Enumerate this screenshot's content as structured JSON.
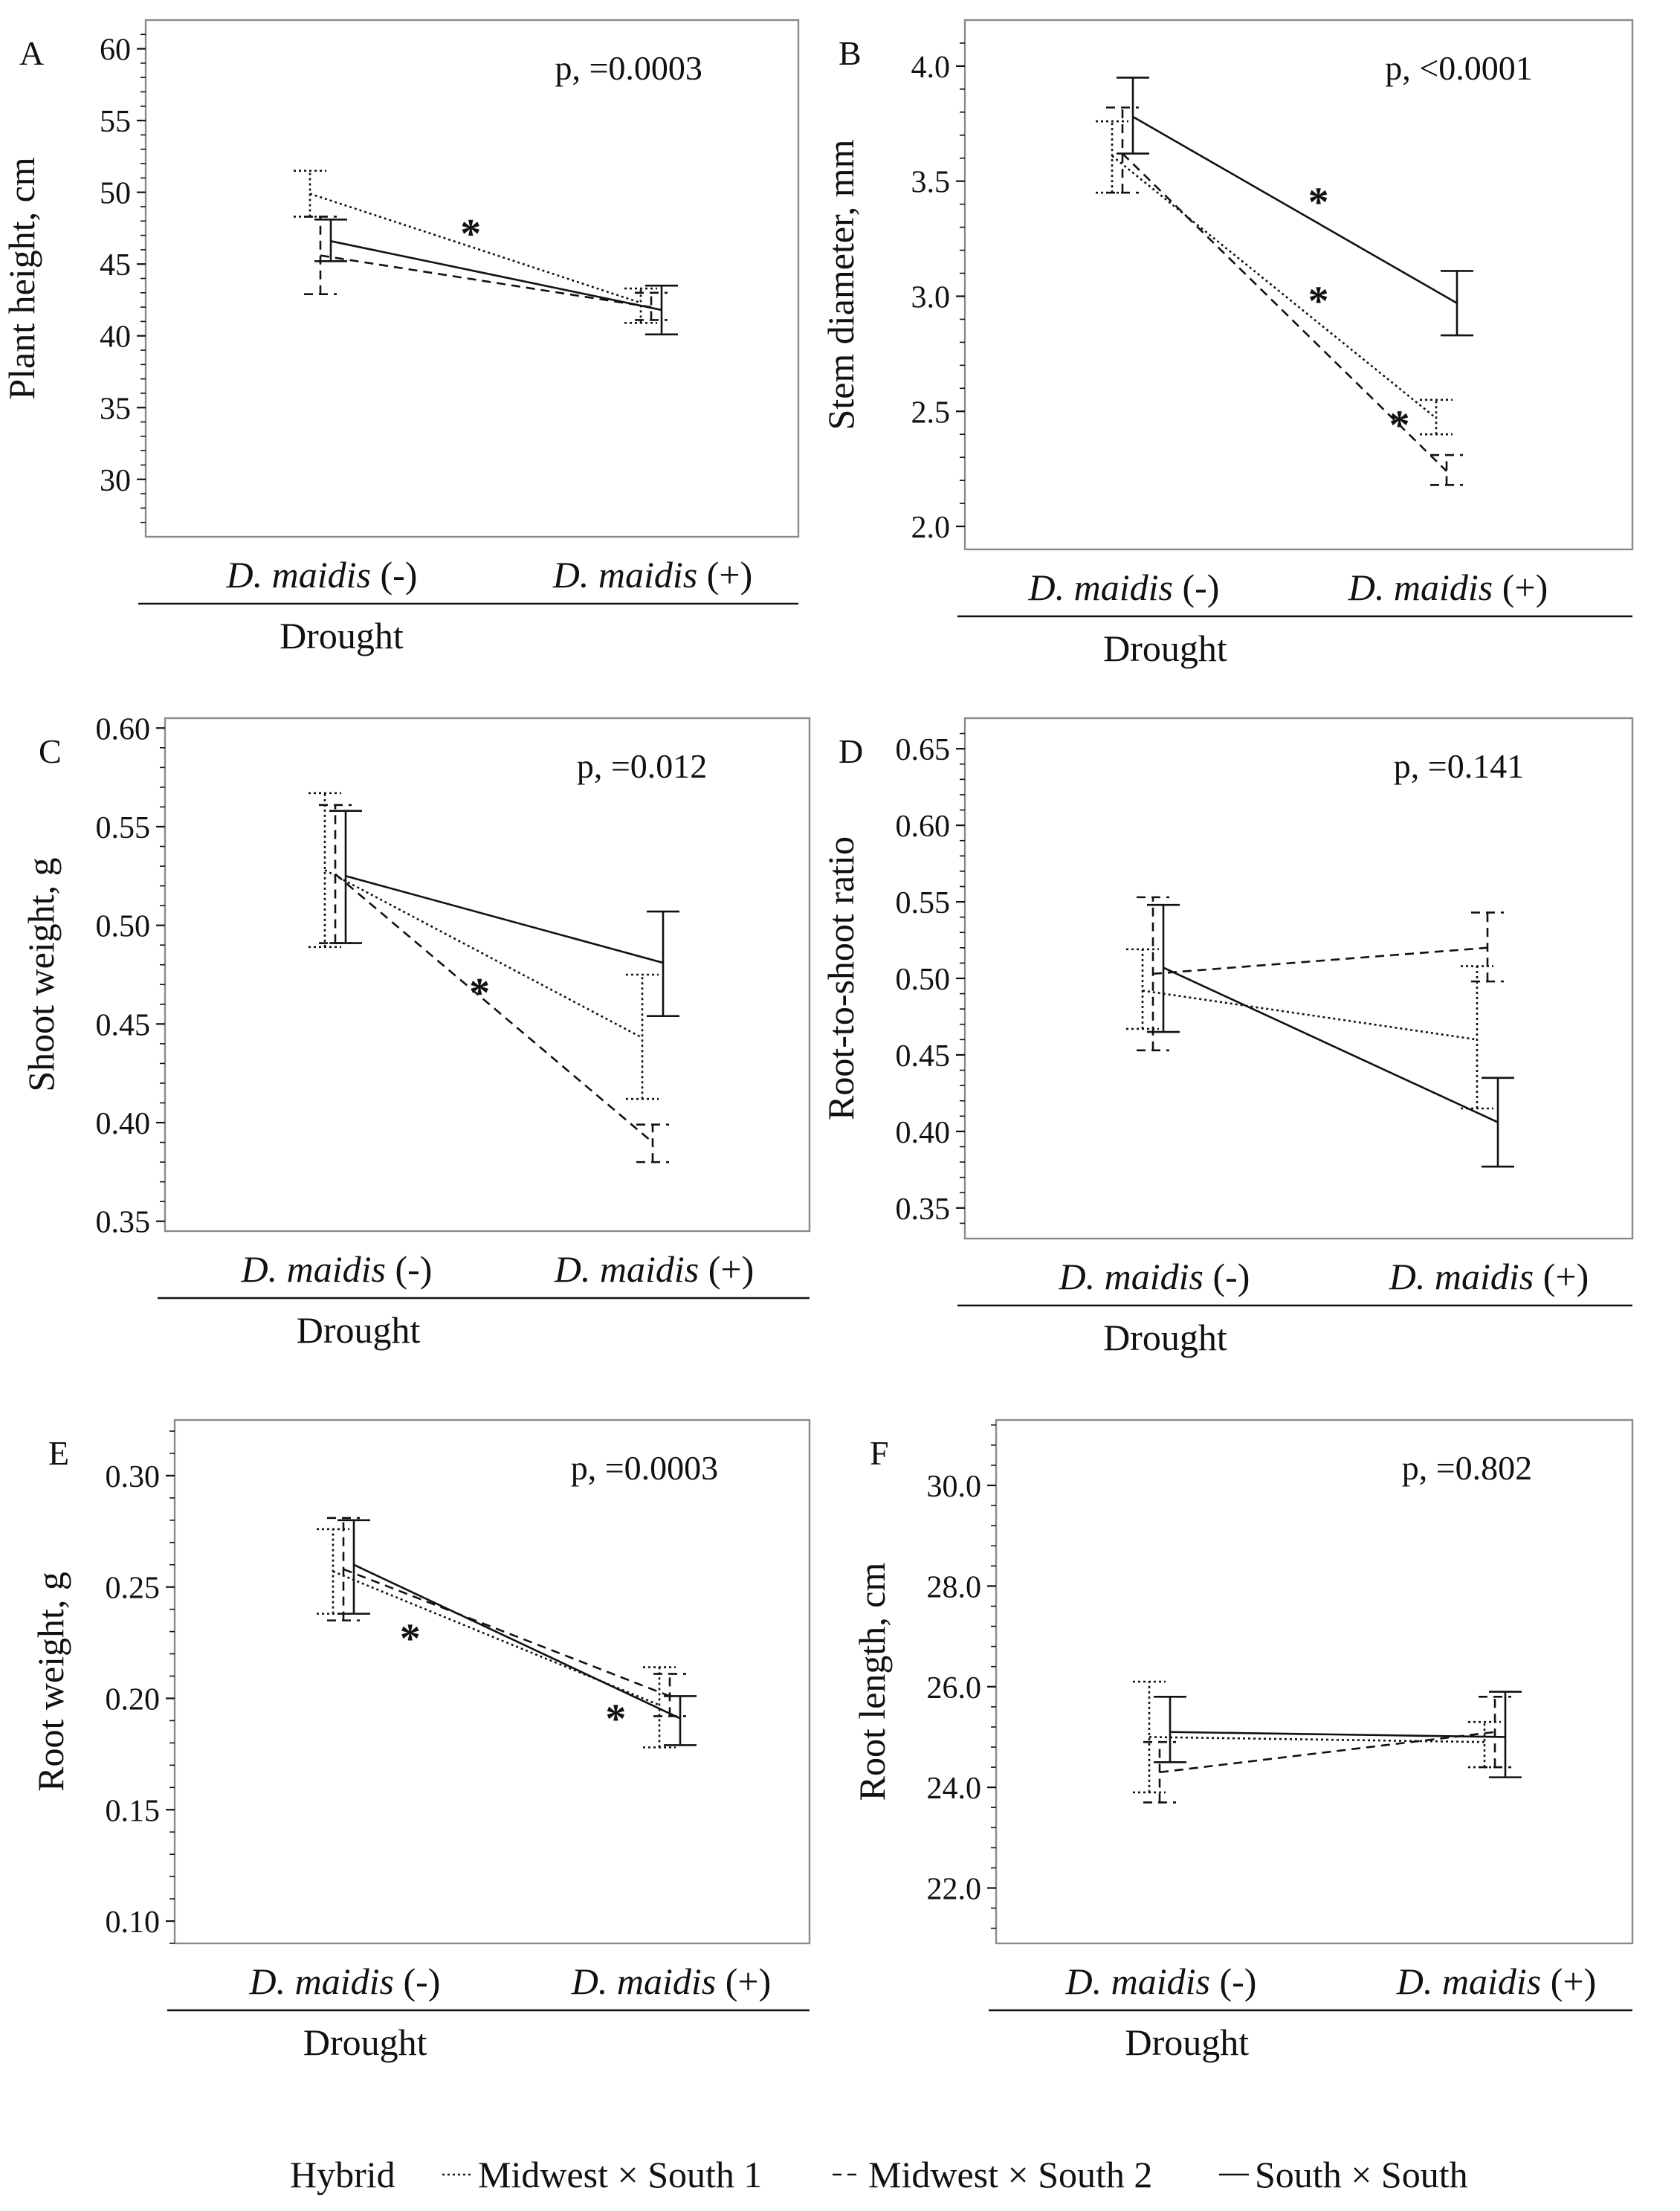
{
  "legend": {
    "title": "Hybrid",
    "items": [
      {
        "name": "Midwest × South 1",
        "style": "dotted"
      },
      {
        "name": "Midwest × South 2",
        "style": "dashed"
      },
      {
        "name": "South × South",
        "style": "solid"
      }
    ]
  },
  "chart_data": [
    {
      "panel": "A",
      "type": "line",
      "ylabel": "Plant height, cm",
      "xlabel": "Drought",
      "categories": [
        "D. maidis (-)",
        "D. maidis (+)"
      ],
      "yticks": [
        "30",
        "35",
        "40",
        "45",
        "50",
        "55",
        "60"
      ],
      "ylim": [
        26,
        62
      ],
      "pvalue": "p, =0.0003",
      "series": [
        {
          "name": "Midwest × South 1",
          "style": "dotted",
          "values": [
            49.9,
            42.3
          ],
          "lower": [
            48.3,
            40.9
          ],
          "upper": [
            51.5,
            43.3
          ],
          "sig": [
            false,
            false
          ]
        },
        {
          "name": "Midwest × South 2",
          "style": "dashed",
          "values": [
            45.6,
            42.0
          ],
          "lower": [
            42.9,
            41.1
          ],
          "upper": [
            48.3,
            43.0
          ],
          "sig": [
            false,
            false
          ]
        },
        {
          "name": "South × South",
          "style": "solid",
          "values": [
            46.6,
            41.8
          ],
          "lower": [
            45.2,
            40.1
          ],
          "upper": [
            48.1,
            43.5
          ],
          "sig": [
            false,
            false
          ]
        }
      ],
      "annotations": [
        {
          "text": "*",
          "x": 0.45,
          "y": 47.3
        }
      ]
    },
    {
      "panel": "B",
      "type": "line",
      "ylabel": "Stem diameter, mm",
      "xlabel": "Drought",
      "categories": [
        "D. maidis (-)",
        "D. maidis (+)"
      ],
      "yticks": [
        "2.0",
        "2.5",
        "3.0",
        "3.5",
        "4.0"
      ],
      "ylim": [
        1.9,
        4.2
      ],
      "pvalue": "p, <0.0001",
      "series": [
        {
          "name": "Midwest × South 1",
          "style": "dotted",
          "values": [
            3.61,
            2.47
          ],
          "lower": [
            3.45,
            2.4
          ],
          "upper": [
            3.76,
            2.55
          ],
          "sig": [
            false,
            false
          ]
        },
        {
          "name": "Midwest × South 2",
          "style": "dashed",
          "values": [
            3.62,
            2.24
          ],
          "lower": [
            3.45,
            2.18
          ],
          "upper": [
            3.82,
            2.31
          ],
          "sig": [
            false,
            false
          ]
        },
        {
          "name": "South × South",
          "style": "solid",
          "values": [
            3.78,
            2.97
          ],
          "lower": [
            3.62,
            2.83
          ],
          "upper": [
            3.95,
            3.11
          ],
          "sig": [
            false,
            false
          ]
        }
      ],
      "annotations": [
        {
          "text": "*",
          "x": 0.6,
          "y": 3.42
        },
        {
          "text": "*",
          "x": 0.6,
          "y": 2.99
        },
        {
          "text": "*",
          "x": 0.85,
          "y": 2.45
        }
      ]
    },
    {
      "panel": "C",
      "type": "line",
      "ylabel": "Shoot weight, g",
      "xlabel": "Drought",
      "categories": [
        "D. maidis (-)",
        "D. maidis (+)"
      ],
      "yticks": [
        "0.35",
        "0.40",
        "0.45",
        "0.50",
        "0.55",
        "0.60"
      ],
      "ylim": [
        0.345,
        0.605
      ],
      "pvalue": "p, =0.012",
      "series": [
        {
          "name": "Midwest × South 1",
          "style": "dotted",
          "values": [
            0.528,
            0.443
          ],
          "lower": [
            0.489,
            0.412
          ],
          "upper": [
            0.567,
            0.475
          ],
          "sig": [
            false,
            false
          ]
        },
        {
          "name": "Midwest × South 2",
          "style": "dashed",
          "values": [
            0.526,
            0.39
          ],
          "lower": [
            0.491,
            0.38
          ],
          "upper": [
            0.561,
            0.399
          ],
          "sig": [
            false,
            false
          ]
        },
        {
          "name": "South × South",
          "style": "solid",
          "values": [
            0.525,
            0.481
          ],
          "lower": [
            0.491,
            0.454
          ],
          "upper": [
            0.558,
            0.507
          ],
          "sig": [
            false,
            false
          ]
        }
      ],
      "annotations": [
        {
          "text": "*",
          "x": 0.45,
          "y": 0.467
        }
      ]
    },
    {
      "panel": "D",
      "type": "line",
      "ylabel": "Root-to-shoot ratio",
      "xlabel": "Drought",
      "categories": [
        "D. maidis (-)",
        "D. maidis (+)"
      ],
      "yticks": [
        "0.35",
        "0.40",
        "0.45",
        "0.50",
        "0.55",
        "0.60",
        "0.65"
      ],
      "ylim": [
        0.33,
        0.67
      ],
      "pvalue": "p, =0.141",
      "series": [
        {
          "name": "Midwest × South 1",
          "style": "dotted",
          "values": [
            0.492,
            0.46
          ],
          "lower": [
            0.467,
            0.415
          ],
          "upper": [
            0.519,
            0.508
          ],
          "sig": [
            false,
            false
          ]
        },
        {
          "name": "Midwest × South 2",
          "style": "dashed",
          "values": [
            0.503,
            0.52
          ],
          "lower": [
            0.453,
            0.498
          ],
          "upper": [
            0.553,
            0.543
          ],
          "sig": [
            false,
            false
          ]
        },
        {
          "name": "South × South",
          "style": "solid",
          "values": [
            0.507,
            0.406
          ],
          "lower": [
            0.465,
            0.377
          ],
          "upper": [
            0.548,
            0.435
          ],
          "sig": [
            false,
            false
          ]
        }
      ],
      "annotations": []
    },
    {
      "panel": "E",
      "type": "line",
      "ylabel": "Root weight, g",
      "xlabel": "Drought",
      "categories": [
        "D. maidis (-)",
        "D. maidis (+)"
      ],
      "yticks": [
        "0.10",
        "0.15",
        "0.20",
        "0.25",
        "0.30"
      ],
      "ylim": [
        0.09,
        0.325
      ],
      "pvalue": "p, =0.0003",
      "series": [
        {
          "name": "Midwest × South 1",
          "style": "dotted",
          "values": [
            0.257,
            0.197
          ],
          "lower": [
            0.238,
            0.178
          ],
          "upper": [
            0.276,
            0.214
          ],
          "sig": [
            false,
            false
          ]
        },
        {
          "name": "Midwest × South 2",
          "style": "dashed",
          "values": [
            0.258,
            0.201
          ],
          "lower": [
            0.235,
            0.192
          ],
          "upper": [
            0.281,
            0.211
          ],
          "sig": [
            false,
            false
          ]
        },
        {
          "name": "South × South",
          "style": "solid",
          "values": [
            0.26,
            0.191
          ],
          "lower": [
            0.238,
            0.179
          ],
          "upper": [
            0.28,
            0.201
          ],
          "sig": [
            false,
            false
          ]
        }
      ],
      "annotations": [
        {
          "text": "*",
          "x": 0.2,
          "y": 0.228
        },
        {
          "text": "*",
          "x": 0.83,
          "y": 0.192
        }
      ]
    },
    {
      "panel": "F",
      "type": "line",
      "ylabel": "Root length, cm",
      "xlabel": "Drought",
      "categories": [
        "D. maidis (-)",
        "D. maidis (+)"
      ],
      "yticks": [
        "22.0",
        "24.0",
        "26.0",
        "28.0",
        "30.0"
      ],
      "ylim": [
        20.9,
        31.3
      ],
      "pvalue": "p, =0.802",
      "series": [
        {
          "name": "Midwest × South 1",
          "style": "dotted",
          "values": [
            25.0,
            24.9
          ],
          "lower": [
            23.9,
            24.4
          ],
          "upper": [
            26.1,
            25.3
          ],
          "sig": [
            false,
            false
          ]
        },
        {
          "name": "Midwest × South 2",
          "style": "dashed",
          "values": [
            24.3,
            25.1
          ],
          "lower": [
            23.7,
            24.4
          ],
          "upper": [
            24.9,
            25.8
          ],
          "sig": [
            false,
            false
          ]
        },
        {
          "name": "South × South",
          "style": "solid",
          "values": [
            25.1,
            25.0
          ],
          "lower": [
            24.5,
            24.2
          ],
          "upper": [
            25.8,
            25.9
          ],
          "sig": [
            false,
            false
          ]
        }
      ],
      "annotations": []
    }
  ]
}
